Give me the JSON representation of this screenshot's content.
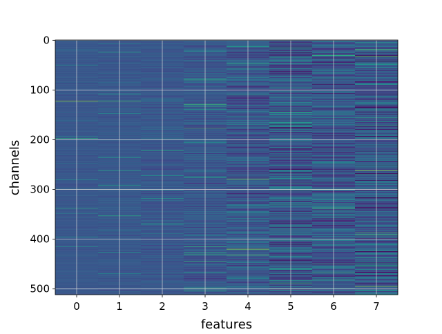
{
  "chart_data": {
    "type": "heatmap",
    "title": "",
    "xlabel": "features",
    "ylabel": "channels",
    "x_ticks": [
      "0",
      "1",
      "2",
      "3",
      "4",
      "5",
      "6",
      "7"
    ],
    "y_ticks": [
      "0",
      "100",
      "200",
      "300",
      "400",
      "500"
    ],
    "y_tick_values": [
      0,
      100,
      200,
      300,
      400,
      500
    ],
    "xlim": [
      -0.5,
      7.5
    ],
    "ylim": [
      511.5,
      -0.5
    ],
    "n_channels": 512,
    "n_features": 8,
    "colormap": "viridis",
    "grid": true,
    "grid_color": "#d9d9d9",
    "feature_variability": [
      0.04,
      0.05,
      0.08,
      0.13,
      0.2,
      0.3,
      0.26,
      0.3
    ],
    "highlighted_cells": [
      {
        "feature": 0,
        "channel": 122,
        "value": 0.85
      },
      {
        "feature": 1,
        "channel": 122,
        "value": 0.7
      },
      {
        "feature": 0,
        "channel": 280,
        "value": 0.5
      },
      {
        "feature": 4,
        "channel": 420,
        "value": 0.85
      },
      {
        "feature": 4,
        "channel": 432,
        "value": 0.75
      },
      {
        "feature": 7,
        "channel": 262,
        "value": 0.85
      },
      {
        "feature": 7,
        "channel": 495,
        "value": 0.8
      },
      {
        "feature": 5,
        "channel": 500,
        "value": 0.75
      },
      {
        "feature": 6,
        "channel": 300,
        "value": 0.7
      }
    ]
  }
}
